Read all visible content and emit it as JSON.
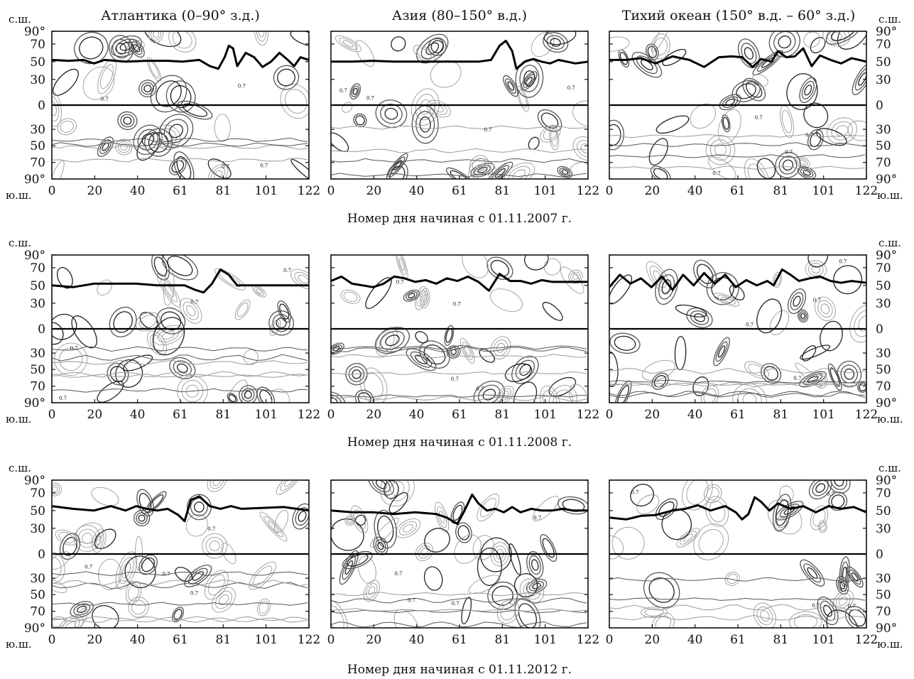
{
  "panel_titles": [
    "Атлантика (0–90° з.д.)",
    "Азия (80–150° в.д.)",
    "Тихий океан (150° в.д. – 60° з.д.)"
  ],
  "side_labels": {
    "north": "с.ш.",
    "south": "ю.ш."
  },
  "row_xlabels": [
    "Номер дня начиная с 01.11.2007 г.",
    "Номер дня начиная с 01.11.2008 г.",
    "Номер дня начиная с 01.11.2012 г."
  ],
  "colors": {
    "contour_dark": "#222222",
    "contour_mid": "#555555",
    "contour_light": "#9a9a9a",
    "shade": "#cfcfcf",
    "line": "#000000"
  },
  "chart_data": {
    "type": "contour",
    "x_tick_labels": [
      "0",
      "20",
      "40",
      "61",
      "81",
      "101",
      "122"
    ],
    "y_tick_labels": [
      "90°",
      "70",
      "50",
      "30",
      "0",
      "30",
      "50",
      "70",
      "90°"
    ],
    "xlim": [
      0,
      122
    ],
    "ylim": [
      -90,
      90
    ],
    "contour_label": "0.7",
    "thick_line_series": [
      {
        "row": 0,
        "col": 0,
        "x": [
          0,
          8,
          15,
          20,
          25,
          35,
          45,
          55,
          62,
          70,
          75,
          79,
          82,
          84,
          86,
          88,
          92,
          96,
          100,
          104,
          108,
          112,
          115,
          118,
          122
        ],
        "y": [
          52,
          51,
          52,
          48,
          52,
          50,
          51,
          51,
          50,
          52,
          45,
          42,
          55,
          68,
          65,
          45,
          60,
          55,
          44,
          50,
          60,
          52,
          45,
          55,
          52
        ]
      },
      {
        "row": 0,
        "col": 1,
        "x": [
          0,
          10,
          20,
          30,
          40,
          50,
          60,
          70,
          76,
          80,
          83,
          86,
          88,
          92,
          96,
          100,
          104,
          108,
          112,
          116,
          122
        ],
        "y": [
          50,
          50,
          51,
          50,
          50,
          50,
          50,
          50,
          52,
          68,
          75,
          62,
          42,
          50,
          53,
          50,
          48,
          52,
          50,
          48,
          50
        ]
      },
      {
        "row": 0,
        "col": 2,
        "x": [
          0,
          8,
          15,
          22,
          30,
          38,
          45,
          52,
          58,
          63,
          68,
          72,
          77,
          80,
          84,
          88,
          92,
          96,
          100,
          105,
          110,
          115,
          122
        ],
        "y": [
          52,
          52,
          54,
          48,
          56,
          52,
          44,
          55,
          56,
          55,
          44,
          53,
          50,
          62,
          55,
          56,
          65,
          45,
          57,
          52,
          48,
          54,
          50
        ]
      },
      {
        "row": 1,
        "col": 0,
        "x": [
          0,
          10,
          20,
          30,
          40,
          50,
          58,
          63,
          68,
          72,
          76,
          80,
          84,
          88,
          92,
          100,
          110,
          122
        ],
        "y": [
          50,
          48,
          52,
          52,
          52,
          50,
          50,
          50,
          45,
          42,
          52,
          68,
          62,
          50,
          50,
          50,
          50,
          50
        ]
      },
      {
        "row": 1,
        "col": 1,
        "x": [
          0,
          5,
          10,
          15,
          20,
          25,
          30,
          35,
          40,
          45,
          50,
          55,
          60,
          65,
          70,
          75,
          80,
          85,
          90,
          95,
          100,
          105,
          110,
          122
        ],
        "y": [
          55,
          60,
          52,
          50,
          48,
          52,
          60,
          58,
          54,
          56,
          52,
          58,
          55,
          60,
          54,
          44,
          63,
          55,
          55,
          52,
          56,
          54,
          54,
          54
        ]
      },
      {
        "row": 1,
        "col": 2,
        "x": [
          0,
          5,
          10,
          15,
          20,
          25,
          30,
          35,
          40,
          45,
          50,
          55,
          60,
          65,
          70,
          75,
          78,
          82,
          86,
          90,
          95,
          100,
          105,
          110,
          115,
          122
        ],
        "y": [
          48,
          62,
          52,
          58,
          48,
          60,
          45,
          62,
          50,
          64,
          52,
          62,
          48,
          56,
          50,
          55,
          50,
          68,
          62,
          55,
          58,
          60,
          55,
          53,
          55,
          53
        ]
      },
      {
        "row": 2,
        "col": 0,
        "x": [
          0,
          10,
          20,
          28,
          35,
          40,
          45,
          50,
          55,
          60,
          63,
          66,
          70,
          75,
          80,
          85,
          90,
          100,
          110,
          122
        ],
        "y": [
          55,
          52,
          50,
          55,
          50,
          55,
          52,
          50,
          52,
          45,
          38,
          62,
          66,
          55,
          52,
          55,
          52,
          53,
          54,
          50
        ]
      },
      {
        "row": 2,
        "col": 1,
        "x": [
          0,
          10,
          20,
          30,
          40,
          50,
          55,
          60,
          63,
          67,
          70,
          74,
          78,
          82,
          86,
          90,
          95,
          100,
          105,
          110,
          115,
          122
        ],
        "y": [
          50,
          48,
          48,
          46,
          48,
          46,
          42,
          35,
          48,
          68,
          58,
          50,
          52,
          48,
          54,
          48,
          52,
          50,
          50,
          52,
          50,
          50
        ]
      },
      {
        "row": 2,
        "col": 2,
        "x": [
          0,
          8,
          15,
          22,
          30,
          36,
          42,
          48,
          55,
          60,
          63,
          66,
          69,
          72,
          76,
          80,
          86,
          92,
          98,
          104,
          110,
          116,
          122
        ],
        "y": [
          42,
          40,
          44,
          45,
          50,
          52,
          56,
          50,
          55,
          48,
          40,
          46,
          65,
          60,
          50,
          58,
          52,
          55,
          48,
          55,
          52,
          54,
          48
        ]
      }
    ]
  }
}
